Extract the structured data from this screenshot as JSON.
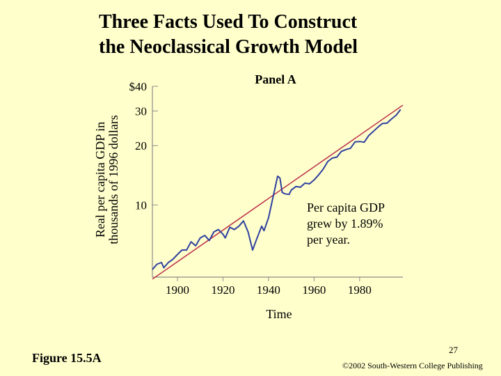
{
  "slide": {
    "title_line1": "Three Facts Used To Construct",
    "title_line2": "the Neoclassical Growth Model",
    "figure_label": "Figure 15.5A",
    "page_number": "27",
    "copyright": "©2002 South-Western College Publishing"
  },
  "colors": {
    "background": "#ffffcc",
    "series_line": "#2e3f9e",
    "trend_line": "#c0394f",
    "axis": "#8a8a8a"
  },
  "chart_data": {
    "type": "line",
    "title": "Panel A",
    "xlabel": "Time",
    "ylabel_line1": "Real per capita GDP in",
    "ylabel_line2": "thousands of 1996 dollars",
    "y_scale": "log",
    "xlim": [
      1889,
      1999
    ],
    "ylim": [
      4.3,
      42
    ],
    "x_ticks": [
      1900,
      1920,
      1940,
      1960,
      1980
    ],
    "x_tick_labels": [
      "1900",
      "1920",
      "1940",
      "1960",
      "1980"
    ],
    "y_ticks": [
      10,
      20,
      30,
      40
    ],
    "y_tick_labels": [
      "10",
      "20",
      "30",
      "$40"
    ],
    "grid": false,
    "annotation": {
      "line1": "Per capita GDP",
      "line2": "grew by 1.89%",
      "line3": "per year."
    },
    "series": [
      {
        "values": [
          [
            1889,
            4.7
          ],
          [
            1891,
            5.0
          ],
          [
            1893,
            5.1
          ],
          [
            1894,
            4.8
          ],
          [
            1896,
            5.1
          ],
          [
            1898,
            5.3
          ],
          [
            1900,
            5.6
          ],
          [
            1902,
            5.9
          ],
          [
            1904,
            5.9
          ],
          [
            1906,
            6.5
          ],
          [
            1908,
            6.2
          ],
          [
            1910,
            6.8
          ],
          [
            1912,
            7.0
          ],
          [
            1914,
            6.6
          ],
          [
            1916,
            7.3
          ],
          [
            1918,
            7.5
          ],
          [
            1920,
            7.1
          ],
          [
            1921,
            6.8
          ],
          [
            1923,
            7.7
          ],
          [
            1925,
            7.5
          ],
          [
            1927,
            7.8
          ],
          [
            1929,
            8.3
          ],
          [
            1931,
            7.3
          ],
          [
            1933,
            5.9
          ],
          [
            1935,
            6.8
          ],
          [
            1937,
            7.8
          ],
          [
            1938,
            7.4
          ],
          [
            1940,
            8.6
          ],
          [
            1942,
            11.0
          ],
          [
            1944,
            14.0
          ],
          [
            1945,
            13.7
          ],
          [
            1946,
            11.6
          ],
          [
            1947,
            11.4
          ],
          [
            1949,
            11.3
          ],
          [
            1950,
            11.9
          ],
          [
            1952,
            12.4
          ],
          [
            1954,
            12.3
          ],
          [
            1956,
            12.9
          ],
          [
            1958,
            12.8
          ],
          [
            1960,
            13.4
          ],
          [
            1962,
            14.2
          ],
          [
            1964,
            15.2
          ],
          [
            1966,
            16.6
          ],
          [
            1968,
            17.3
          ],
          [
            1970,
            17.5
          ],
          [
            1972,
            18.7
          ],
          [
            1974,
            19.1
          ],
          [
            1976,
            19.4
          ],
          [
            1978,
            20.9
          ],
          [
            1980,
            21.0
          ],
          [
            1982,
            20.8
          ],
          [
            1984,
            22.5
          ],
          [
            1986,
            23.6
          ],
          [
            1988,
            24.8
          ],
          [
            1990,
            25.9
          ],
          [
            1992,
            26.0
          ],
          [
            1994,
            27.3
          ],
          [
            1996,
            28.5
          ],
          [
            1998,
            30.5
          ]
        ]
      }
    ],
    "trend": {
      "growth_rate": 0.0189,
      "x_start": 1889,
      "x_end": 1999,
      "y_start": 4.2,
      "y_end": 32.1
    }
  }
}
